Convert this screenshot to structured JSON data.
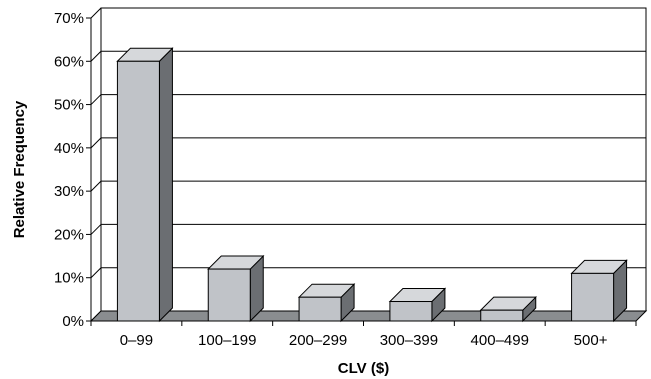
{
  "chart_data": {
    "type": "bar",
    "title": "",
    "xlabel": "CLV ($)",
    "ylabel": "Relative Frequency",
    "categories": [
      "0–99",
      "100–199",
      "200–299",
      "300–399",
      "400–499",
      "500+"
    ],
    "values": [
      60,
      12,
      5.5,
      4.5,
      2.5,
      11
    ],
    "value_unit": "%",
    "ylim": [
      0,
      70
    ],
    "yticks": [
      "0%",
      "10%",
      "20%",
      "30%",
      "40%",
      "50%",
      "60%",
      "70%"
    ],
    "grid": true,
    "style": "3d",
    "colors": {
      "bar_front": "#c0c3c8",
      "bar_top": "#d6d8db",
      "bar_side": "#6b6e72",
      "outline": "#000000",
      "grid": "#000000"
    }
  }
}
